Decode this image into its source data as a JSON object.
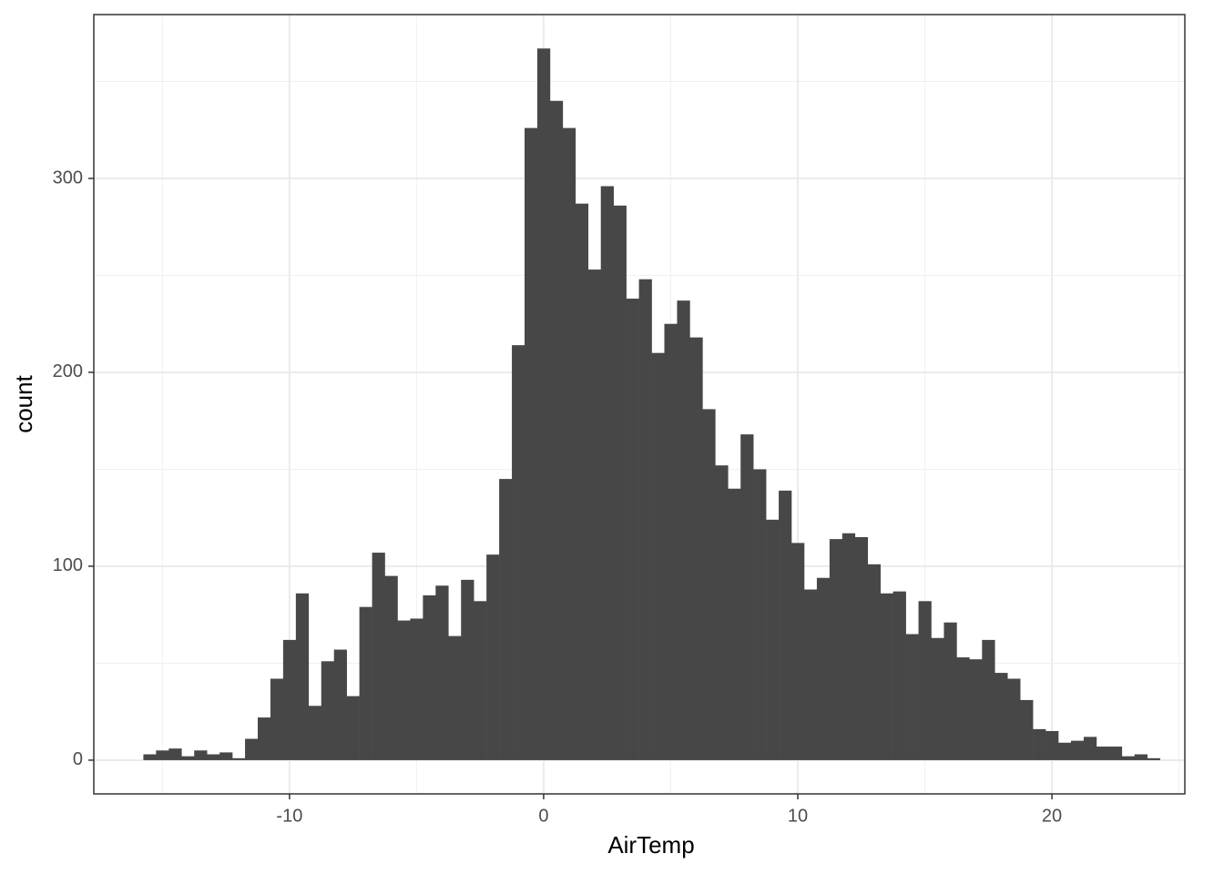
{
  "chart_data": {
    "type": "histogram",
    "x_label": "AirTemp",
    "y_label": "count",
    "bins": [
      -15.75,
      -15.25,
      -14.75,
      -14.25,
      -13.75,
      -13.25,
      -12.75,
      -12.25,
      -11.75,
      -11.25,
      -10.75,
      -10.25,
      -9.75,
      -9.25,
      -8.75,
      -8.25,
      -7.75,
      -7.25,
      -6.75,
      -6.25,
      -5.75,
      -5.25,
      -4.75,
      -4.25,
      -3.75,
      -3.25,
      -2.75,
      -2.25,
      -1.75,
      -1.25,
      -0.75,
      -0.25,
      0.25,
      0.75,
      1.25,
      1.75,
      2.25,
      2.75,
      3.25,
      3.75,
      4.25,
      4.75,
      5.25,
      5.75,
      6.25,
      6.75,
      7.25,
      7.75,
      8.25,
      8.75,
      9.25,
      9.75,
      10.25,
      10.75,
      11.25,
      11.75,
      12.25,
      12.75,
      13.25,
      13.75,
      14.25,
      14.75,
      15.25,
      15.75,
      16.25,
      16.75,
      17.25,
      17.75,
      18.25,
      18.75,
      19.25,
      19.75,
      20.25,
      20.75,
      21.25,
      21.75,
      22.25,
      22.75,
      23.25,
      23.75,
      24.25
    ],
    "values": [
      3,
      5,
      6,
      2,
      5,
      3,
      4,
      1,
      11,
      22,
      42,
      62,
      86,
      28,
      51,
      57,
      33,
      79,
      107,
      95,
      72,
      73,
      85,
      90,
      64,
      93,
      82,
      106,
      145,
      214,
      326,
      367,
      340,
      326,
      287,
      253,
      296,
      286,
      238,
      248,
      210,
      225,
      237,
      218,
      181,
      152,
      140,
      168,
      150,
      124,
      139,
      112,
      88,
      94,
      114,
      117,
      115,
      101,
      86,
      87,
      65,
      82,
      63,
      71,
      53,
      52,
      62,
      45,
      42,
      31,
      16,
      15,
      9,
      10,
      12,
      7,
      7,
      2,
      3,
      1
    ],
    "color": "#474747",
    "xlim": [
      -17.7,
      25.23
    ],
    "ylim": [
      -17.4,
      384.5
    ],
    "xticks": [
      -10,
      0,
      10,
      20
    ],
    "yticks": [
      0,
      100,
      200,
      300
    ],
    "x_minor_ticks": [
      -15,
      -5,
      5,
      15,
      25
    ],
    "y_minor_ticks": [
      50,
      150,
      250,
      350
    ],
    "grid": true
  }
}
